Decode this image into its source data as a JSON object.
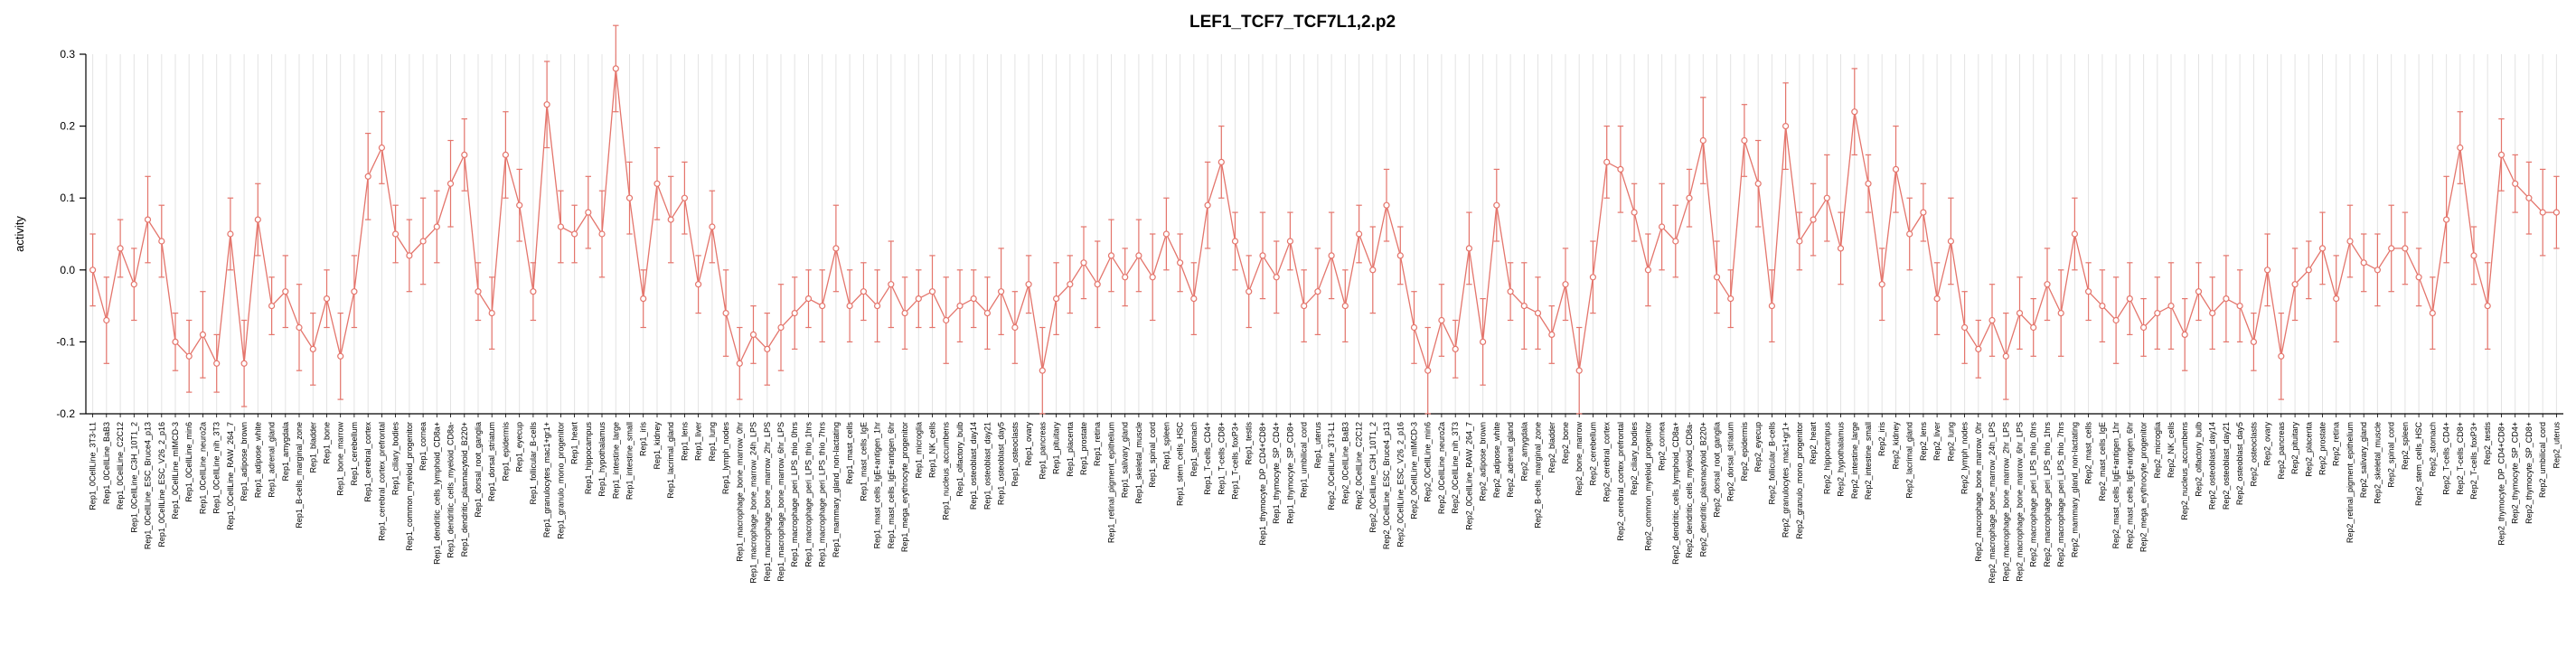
{
  "chart_data": {
    "type": "line",
    "title": "LEF1_TCF7_TCF7L1,2.p2",
    "xlabel": "",
    "ylabel": "activity",
    "ylim": [
      -0.2,
      0.3
    ],
    "yticks": [
      -0.2,
      -0.1,
      0.0,
      0.1,
      0.2,
      0.3
    ],
    "grid": "vertical-per-category",
    "legend": "none",
    "marker": "open-circle",
    "error_bars": true,
    "color": "#E4756C",
    "grid_color": "#e3e3e3",
    "axis_color": "#000000",
    "label_sep": "_",
    "reps": [
      "Rep1",
      "Rep2"
    ],
    "tissues": [
      "0CellLine_3T3-L1",
      "0CellLine_BaB3",
      "0CellLine_C2C12",
      "0CellLine_C3H_10T1_2",
      "0CellLine_ESC_Bruce4_p13",
      "0CellLine_ESC_V26_2_p16",
      "0CellLine_mIMCD-3",
      "0CellLine_min6",
      "0CellLine_neuro2a",
      "0CellLine_nih_3T3",
      "0CellLine_RAW_264_7",
      "adipose_brown",
      "adipose_white",
      "adrenal_gland",
      "amygdala",
      "B-cells_marginal_zone",
      "bladder",
      "bone",
      "bone_marrow",
      "cerebellum",
      "cerebral_cortex",
      "cerebral_cortex_prefrontal",
      "ciliary_bodies",
      "common_myeloid_progenitor",
      "cornea",
      "dendritic_cells_lymphoid_CD8a+",
      "dendritic_cells_myeloid_CD8a-",
      "dendritic_plasmacytoid_B220+",
      "dorsal_root_ganglia",
      "dorsal_striatum",
      "epidermis",
      "eyecup",
      "follicular_B-cells",
      "granulocytes_mac1+gr1+",
      "granulo_mono_progenitor",
      "heart",
      "hippocampus",
      "hypothalamus",
      "intestine_large",
      "intestine_small",
      "iris",
      "kidney",
      "lacrimal_gland",
      "lens",
      "liver",
      "lung",
      "lymph_nodes",
      "macrophage_bone_marrow_0hr",
      "macrophage_bone_marrow_24h_LPS",
      "macrophage_bone_marrow_2hr_LPS",
      "macrophage_bone_marrow_6hr_LPS",
      "macrophage_peri_LPS_thio_0hrs",
      "macrophage_peri_LPS_thio_1hrs",
      "macrophage_peri_LPS_thio_7hrs",
      "mammary_gland_non-lactating",
      "mast_cells",
      "mast_cells_IgE",
      "mast_cells_IgE+antigen_1hr",
      "mast_cells_IgE+antigen_6hr",
      "mega_erythrocyte_progenitor",
      "microglia",
      "NK_cells",
      "nucleus_accumbens",
      "olfactory_bulb",
      "osteoblast_day14",
      "osteoblast_day21",
      "osteoblast_day5",
      "osteoclasts",
      "ovary",
      "pancreas",
      "pituitary",
      "placenta",
      "prostate",
      "retina",
      "retinal_pigment_epithelium",
      "salivary_gland",
      "skeletal_muscle",
      "spinal_cord",
      "spleen",
      "stem_cells_HSC",
      "stomach",
      "T-cells_CD4+",
      "T-cells_CD8+",
      "T-cells_foxP3+",
      "testis",
      "thymocyte_DP_CD4+CD8+",
      "thymocyte_SP_CD4+",
      "thymocyte_SP_CD8+",
      "umbilical_cord",
      "uterus"
    ],
    "series": [
      {
        "name": "Rep1",
        "values": [
          0.0,
          -0.07,
          0.03,
          -0.02,
          0.07,
          0.04,
          -0.1,
          -0.12,
          -0.09,
          -0.13,
          0.05,
          -0.13,
          0.07,
          -0.05,
          -0.03,
          -0.08,
          -0.11,
          -0.04,
          -0.12,
          -0.03,
          0.13,
          0.17,
          0.05,
          0.02,
          0.04,
          0.06,
          0.12,
          0.16,
          -0.03,
          -0.06,
          0.16,
          0.09,
          -0.03,
          0.23,
          0.06,
          0.05,
          0.08,
          0.05,
          0.28,
          0.1,
          -0.04,
          0.12,
          0.07,
          0.1,
          -0.02,
          0.06,
          -0.06,
          -0.13,
          -0.09,
          -0.11,
          -0.08,
          -0.06,
          -0.04,
          -0.05,
          0.03,
          -0.05,
          -0.03,
          -0.05,
          -0.02,
          -0.06,
          -0.04,
          -0.03,
          -0.07,
          -0.05,
          -0.04,
          -0.06,
          -0.03,
          -0.08,
          -0.02,
          -0.14,
          -0.04,
          -0.02,
          0.01,
          -0.02,
          0.02,
          -0.01,
          0.02,
          -0.01,
          0.05,
          0.01,
          -0.04,
          0.09,
          0.15,
          0.04,
          -0.03,
          0.02,
          -0.01,
          0.04,
          -0.05,
          -0.03
        ],
        "errors": [
          0.05,
          0.06,
          0.04,
          0.05,
          0.06,
          0.05,
          0.04,
          0.05,
          0.06,
          0.04,
          0.05,
          0.06,
          0.05,
          0.04,
          0.05,
          0.06,
          0.05,
          0.04,
          0.06,
          0.05,
          0.06,
          0.05,
          0.04,
          0.05,
          0.06,
          0.05,
          0.06,
          0.05,
          0.04,
          0.05,
          0.06,
          0.05,
          0.04,
          0.06,
          0.05,
          0.04,
          0.05,
          0.06,
          0.06,
          0.05,
          0.04,
          0.05,
          0.06,
          0.05,
          0.04,
          0.05,
          0.06,
          0.05,
          0.04,
          0.05,
          0.06,
          0.05,
          0.04,
          0.05,
          0.06,
          0.05,
          0.04,
          0.05,
          0.06,
          0.05,
          0.04,
          0.05,
          0.06,
          0.05,
          0.04,
          0.05,
          0.06,
          0.05,
          0.04,
          0.06,
          0.05,
          0.04,
          0.05,
          0.06,
          0.05,
          0.04,
          0.05,
          0.06,
          0.05,
          0.04,
          0.05,
          0.06,
          0.05,
          0.04,
          0.05,
          0.06,
          0.05,
          0.04,
          0.05,
          0.06
        ]
      },
      {
        "name": "Rep2",
        "values": [
          0.02,
          -0.05,
          0.05,
          0.0,
          0.09,
          0.02,
          -0.08,
          -0.14,
          -0.07,
          -0.11,
          0.03,
          -0.1,
          0.09,
          -0.03,
          -0.05,
          -0.06,
          -0.09,
          -0.02,
          -0.14,
          -0.01,
          0.15,
          0.14,
          0.08,
          0.0,
          0.06,
          0.04,
          0.1,
          0.18,
          -0.01,
          -0.04,
          0.18,
          0.12,
          -0.05,
          0.2,
          0.04,
          0.07,
          0.1,
          0.03,
          0.22,
          0.12,
          -0.02,
          0.14,
          0.05,
          0.08,
          -0.04,
          0.04,
          -0.08,
          -0.11,
          -0.07,
          -0.12,
          -0.06,
          -0.08,
          -0.02,
          -0.06,
          0.05,
          -0.03,
          -0.05,
          -0.07,
          -0.04,
          -0.08,
          -0.06,
          -0.05,
          -0.09,
          -0.03,
          -0.06,
          -0.04,
          -0.05,
          -0.1,
          0.0,
          -0.12,
          -0.02,
          0.0,
          0.03,
          -0.04,
          0.04,
          0.01,
          0.0,
          0.03,
          0.03,
          -0.01,
          -0.06,
          0.07,
          0.17,
          0.02,
          -0.05,
          0.16,
          0.12,
          0.1,
          0.08,
          0.08
        ],
        "errors": [
          0.06,
          0.05,
          0.04,
          0.06,
          0.05,
          0.04,
          0.05,
          0.06,
          0.05,
          0.04,
          0.05,
          0.06,
          0.05,
          0.04,
          0.06,
          0.05,
          0.04,
          0.05,
          0.06,
          0.05,
          0.05,
          0.06,
          0.04,
          0.05,
          0.06,
          0.05,
          0.04,
          0.06,
          0.05,
          0.04,
          0.05,
          0.06,
          0.05,
          0.06,
          0.04,
          0.05,
          0.06,
          0.05,
          0.06,
          0.04,
          0.05,
          0.06,
          0.05,
          0.04,
          0.05,
          0.06,
          0.05,
          0.04,
          0.05,
          0.06,
          0.05,
          0.04,
          0.05,
          0.06,
          0.05,
          0.04,
          0.05,
          0.06,
          0.05,
          0.04,
          0.05,
          0.06,
          0.05,
          0.04,
          0.05,
          0.06,
          0.05,
          0.04,
          0.05,
          0.06,
          0.05,
          0.04,
          0.05,
          0.06,
          0.05,
          0.04,
          0.05,
          0.06,
          0.05,
          0.04,
          0.05,
          0.06,
          0.05,
          0.04,
          0.06,
          0.05,
          0.04,
          0.05,
          0.06,
          0.05
        ]
      }
    ]
  }
}
